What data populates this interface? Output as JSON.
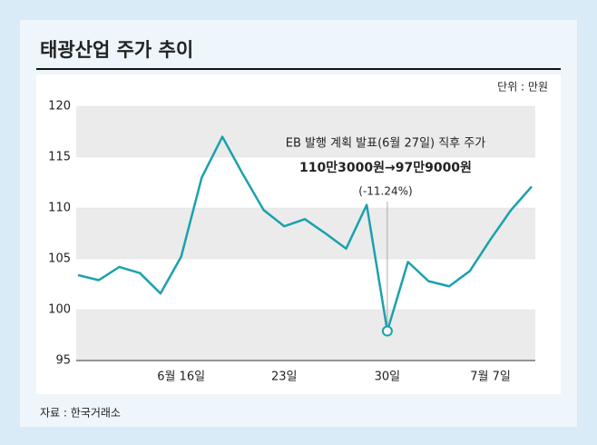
{
  "chart_data": {
    "type": "line",
    "title": "태광산업 주가 추이",
    "unit": "단위 : 만원",
    "source": "자료 : 한국거래소",
    "annotations": [
      "EB 발행 계획 발표(6월 27일) 직후 주가",
      "110만3000원→97만9000원",
      "(-11.24%)"
    ],
    "categories": [
      null,
      null,
      null,
      null,
      null,
      "6월 16일",
      null,
      null,
      null,
      null,
      "23일",
      null,
      null,
      null,
      null,
      "30일",
      null,
      null,
      null,
      null,
      "7월 7일",
      null,
      null
    ],
    "series": [
      {
        "name": "태광산업",
        "color": "#1ba1ad",
        "values": [
          103.4,
          102.9,
          104.2,
          103.6,
          101.6,
          105.2,
          113.0,
          117.0,
          113.3,
          109.8,
          108.2,
          108.9,
          107.5,
          106.0,
          110.3,
          97.9,
          104.7,
          102.8,
          102.3,
          103.8,
          106.9,
          109.8,
          112.1
        ]
      }
    ],
    "ylim": [
      95,
      120
    ],
    "yticks": [
      95,
      100,
      105,
      110,
      115,
      120
    ],
    "bands": true
  }
}
